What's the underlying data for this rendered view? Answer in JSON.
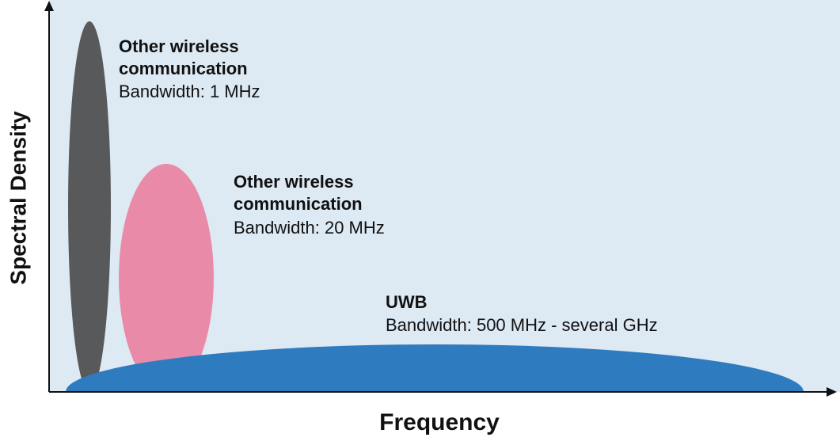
{
  "axes": {
    "y_label": "Spectral Density",
    "x_label": "Frequency"
  },
  "signals": [
    {
      "title_lines": [
        "Other wireless",
        "communication"
      ],
      "bandwidth": "Bandwidth: 1 MHz"
    },
    {
      "title_lines": [
        "Other wireless",
        "communication"
      ],
      "bandwidth": "Bandwidth: 20 MHz"
    },
    {
      "title_lines": [
        "UWB"
      ],
      "bandwidth": "Bandwidth: 500 MHz - several GHz"
    }
  ]
}
